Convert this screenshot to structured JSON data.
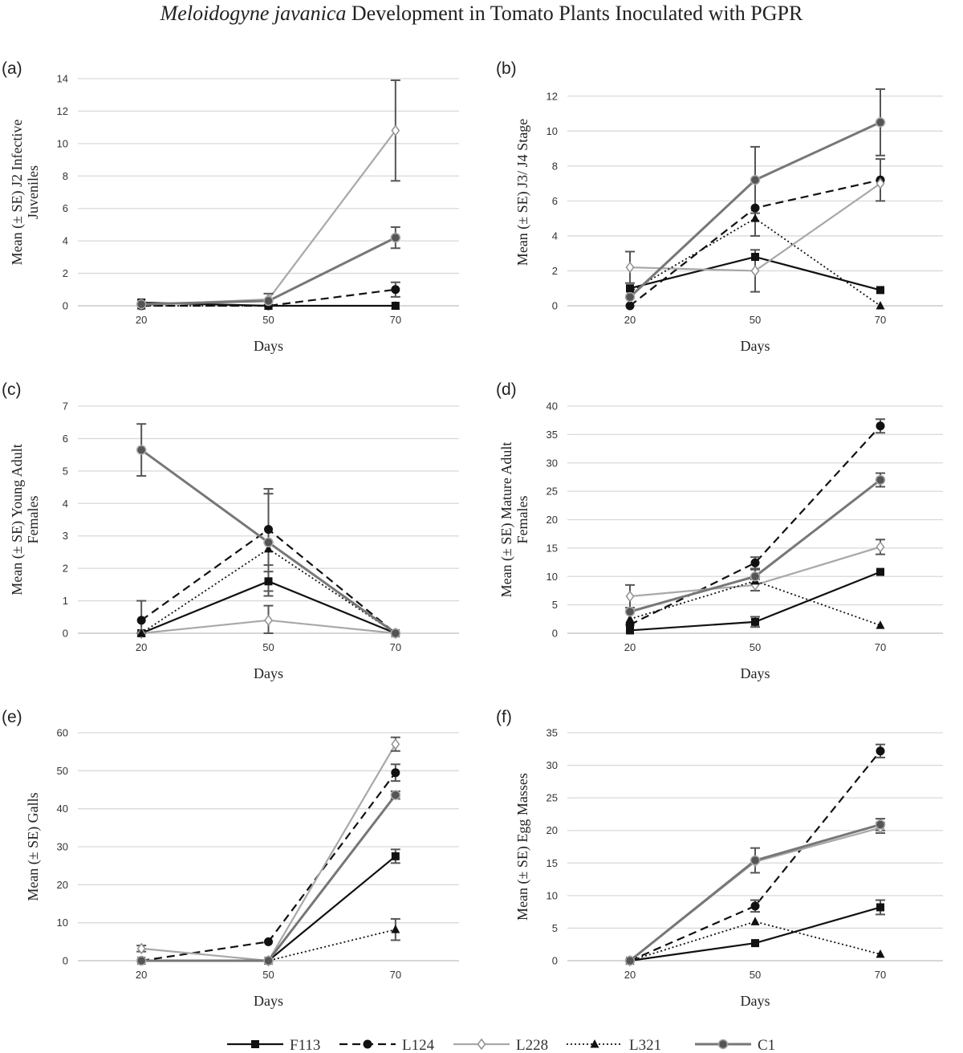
{
  "title": {
    "italic": "Meloidogyne javanica",
    "rest": " Development in Tomato Plants Inoculated with PGPR"
  },
  "series_styles": {
    "F113": {
      "color": "#111111",
      "dash": "",
      "marker": "square",
      "width": 2.2
    },
    "L124": {
      "color": "#111111",
      "dash": "10,6",
      "marker": "circle",
      "width": 2.2
    },
    "L228": {
      "color": "#a8a8a8",
      "dash": "",
      "marker": "diamond",
      "width": 2.2
    },
    "L321": {
      "color": "#111111",
      "dash": "2,3",
      "marker": "triangle",
      "width": 1.8
    },
    "C1": {
      "color": "#777777",
      "dash": "",
      "marker": "ringcircle",
      "width": 3
    }
  },
  "legend": [
    "F113",
    "L124",
    "L228",
    "L321",
    "C1"
  ],
  "chart_data": [
    {
      "panel": "(a)",
      "type": "line",
      "ylabel": [
        "Mean (± SE) J2 Infective",
        "Juveniles"
      ],
      "xlabel": "Days",
      "categories": [
        "20",
        "50",
        "70"
      ],
      "ylim": [
        0,
        14
      ],
      "yticks": [
        0,
        2,
        4,
        6,
        8,
        10,
        12,
        14
      ],
      "series": [
        {
          "name": "F113",
          "values": [
            0.2,
            0.0,
            0.0
          ],
          "err": [
            0,
            0,
            0
          ]
        },
        {
          "name": "L124",
          "values": [
            0.0,
            0.0,
            1.0
          ],
          "err": [
            0,
            0,
            0.45
          ]
        },
        {
          "name": "L228",
          "values": [
            0.05,
            0.4,
            10.8
          ],
          "err": [
            0,
            0.35,
            3.1
          ]
        },
        {
          "name": "L321",
          "values": [
            0.0,
            0.0,
            0.0
          ],
          "err": [
            0,
            0,
            0
          ]
        },
        {
          "name": "C1",
          "values": [
            0.1,
            0.3,
            4.2
          ],
          "err": [
            0,
            0,
            0.65
          ]
        }
      ]
    },
    {
      "panel": "(b)",
      "type": "line",
      "ylabel": [
        "Mean (± SE) J3/ J4 Stage"
      ],
      "xlabel": "Days",
      "categories": [
        "20",
        "50",
        "70"
      ],
      "ylim": [
        0,
        13
      ],
      "yticks": [
        0,
        2,
        4,
        6,
        8,
        10,
        12
      ],
      "series": [
        {
          "name": "F113",
          "values": [
            1.0,
            2.8,
            0.9
          ],
          "err": [
            0,
            0,
            0
          ]
        },
        {
          "name": "L124",
          "values": [
            0.0,
            5.6,
            7.2
          ],
          "err": [
            0,
            1.6,
            1.2
          ]
        },
        {
          "name": "L228",
          "values": [
            2.2,
            2.0,
            7.0
          ],
          "err": [
            0.9,
            1.2,
            0
          ]
        },
        {
          "name": "L321",
          "values": [
            0.8,
            5.0,
            0.0
          ],
          "err": [
            0,
            0,
            0
          ]
        },
        {
          "name": "C1",
          "values": [
            0.5,
            7.2,
            10.5
          ],
          "err": [
            0,
            1.9,
            1.9
          ]
        }
      ]
    },
    {
      "panel": "(c)",
      "type": "line",
      "ylabel": [
        "Mean (± SE) Young Adult",
        "Females"
      ],
      "xlabel": "Days",
      "categories": [
        "20",
        "50",
        "70"
      ],
      "ylim": [
        0,
        7
      ],
      "yticks": [
        0,
        1,
        2,
        3,
        4,
        5,
        6,
        7
      ],
      "series": [
        {
          "name": "F113",
          "values": [
            0.0,
            1.6,
            0.0
          ],
          "err": [
            0,
            0.3,
            0
          ]
        },
        {
          "name": "L124",
          "values": [
            0.4,
            3.2,
            0.0
          ],
          "err": [
            0.6,
            1.1,
            0
          ]
        },
        {
          "name": "L228",
          "values": [
            0.0,
            0.4,
            0.0
          ],
          "err": [
            0,
            0.45,
            0
          ]
        },
        {
          "name": "L321",
          "values": [
            0.0,
            2.6,
            0.0
          ],
          "err": [
            0,
            0,
            0
          ]
        },
        {
          "name": "C1",
          "values": [
            5.65,
            2.8,
            0.0
          ],
          "err": [
            0.8,
            1.65,
            0
          ]
        }
      ]
    },
    {
      "panel": "(d)",
      "type": "line",
      "ylabel": [
        "Mean (± SE) Mature Adult",
        "Females"
      ],
      "xlabel": "Days",
      "categories": [
        "20",
        "50",
        "70"
      ],
      "ylim": [
        0,
        40
      ],
      "yticks": [
        0,
        5,
        10,
        15,
        20,
        25,
        30,
        35,
        40
      ],
      "series": [
        {
          "name": "F113",
          "values": [
            0.5,
            2.0,
            10.8
          ],
          "err": [
            0,
            0.9,
            0
          ]
        },
        {
          "name": "L124",
          "values": [
            1.5,
            12.4,
            36.5
          ],
          "err": [
            0,
            1.0,
            1.2
          ]
        },
        {
          "name": "L228",
          "values": [
            6.5,
            8.5,
            15.2
          ],
          "err": [
            2.0,
            1.0,
            1.3
          ]
        },
        {
          "name": "L321",
          "values": [
            2.5,
            9.2,
            1.4
          ],
          "err": [
            0,
            0,
            0
          ]
        },
        {
          "name": "C1",
          "values": [
            3.8,
            10.0,
            27.0
          ],
          "err": [
            0,
            1.2,
            1.2
          ]
        }
      ]
    },
    {
      "panel": "(e)",
      "type": "line",
      "ylabel": [
        "Mean (± SE) Galls"
      ],
      "xlabel": "Days",
      "categories": [
        "20",
        "50",
        "70"
      ],
      "ylim": [
        0,
        60
      ],
      "yticks": [
        0,
        10,
        20,
        30,
        40,
        50,
        60
      ],
      "series": [
        {
          "name": "F113",
          "values": [
            0.0,
            0.0,
            27.5
          ],
          "err": [
            0,
            0,
            1.8
          ]
        },
        {
          "name": "L124",
          "values": [
            0.0,
            5.0,
            49.5
          ],
          "err": [
            0,
            0,
            2.2
          ]
        },
        {
          "name": "L228",
          "values": [
            3.2,
            0.0,
            57.0
          ],
          "err": [
            0.8,
            0,
            1.8
          ]
        },
        {
          "name": "L321",
          "values": [
            0.0,
            0.0,
            8.2
          ],
          "err": [
            0,
            0,
            2.8
          ]
        },
        {
          "name": "C1",
          "values": [
            0.0,
            0.0,
            43.6
          ],
          "err": [
            0,
            0,
            1.0
          ]
        }
      ]
    },
    {
      "panel": "(f)",
      "type": "line",
      "ylabel": [
        "Mean (± SE) Egg Masses"
      ],
      "xlabel": "Days",
      "categories": [
        "20",
        "50",
        "70"
      ],
      "ylim": [
        0,
        35
      ],
      "yticks": [
        0,
        5,
        10,
        15,
        20,
        25,
        30,
        35
      ],
      "series": [
        {
          "name": "F113",
          "values": [
            0.0,
            2.7,
            8.2
          ],
          "err": [
            0,
            0,
            1.1
          ]
        },
        {
          "name": "L124",
          "values": [
            0.0,
            8.4,
            32.2
          ],
          "err": [
            0,
            0.9,
            1.0
          ]
        },
        {
          "name": "L228",
          "values": [
            0.0,
            15.2,
            20.4
          ],
          "err": [
            0,
            0,
            0.8
          ]
        },
        {
          "name": "L321",
          "values": [
            0.0,
            6.0,
            1.0
          ],
          "err": [
            0,
            0,
            0
          ]
        },
        {
          "name": "C1",
          "values": [
            0.0,
            15.4,
            20.9
          ],
          "err": [
            0,
            1.9,
            0.9
          ]
        }
      ]
    }
  ]
}
